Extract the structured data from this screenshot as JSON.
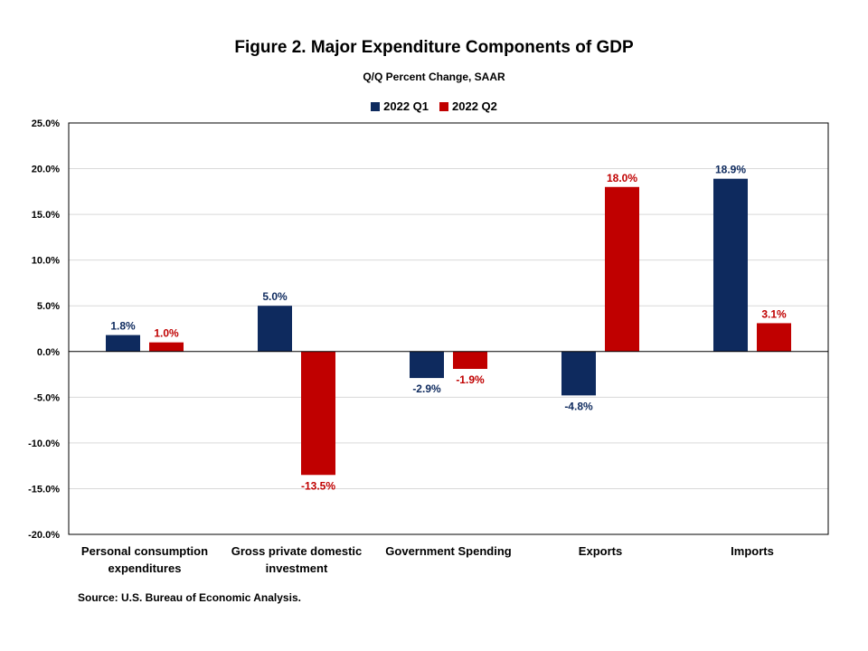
{
  "chart_data": {
    "type": "bar",
    "title": "Figure 2. Major Expenditure  Components  of GDP",
    "subtitle": "Q/Q Percent Change, SAAR",
    "categories": [
      [
        "Personal consumption",
        "expenditures"
      ],
      [
        "Gross private domestic",
        "investment"
      ],
      [
        "Government Spending"
      ],
      [
        "Exports"
      ],
      [
        "Imports"
      ]
    ],
    "series": [
      {
        "name": "2022 Q1",
        "color": "#0e2a5e",
        "values": [
          1.8,
          5.0,
          -2.9,
          -4.8,
          18.9
        ],
        "labels": [
          "1.8%",
          "5.0%",
          "-2.9%",
          "-4.8%",
          "18.9%"
        ]
      },
      {
        "name": "2022 Q2",
        "color": "#c00000",
        "values": [
          1.0,
          -13.5,
          -1.9,
          18.0,
          3.1
        ],
        "labels": [
          "1.0%",
          "-13.5%",
          "-1.9%",
          "18.0%",
          "3.1%"
        ]
      }
    ],
    "ylim": [
      -20,
      25
    ],
    "yticks": [
      25,
      20,
      15,
      10,
      5,
      0,
      -5,
      -10,
      -15,
      -20
    ],
    "ytick_labels": [
      "25.0%",
      "20.0%",
      "15.0%",
      "10.0%",
      "5.0%",
      "0.0%",
      "-5.0%",
      "-10.0%",
      "-15.0%",
      "-20.0%"
    ],
    "xlabel": "",
    "ylabel": "",
    "grid": true,
    "legend_position": "top-center"
  },
  "source": "Source: U.S. Bureau of Economic Analysis."
}
